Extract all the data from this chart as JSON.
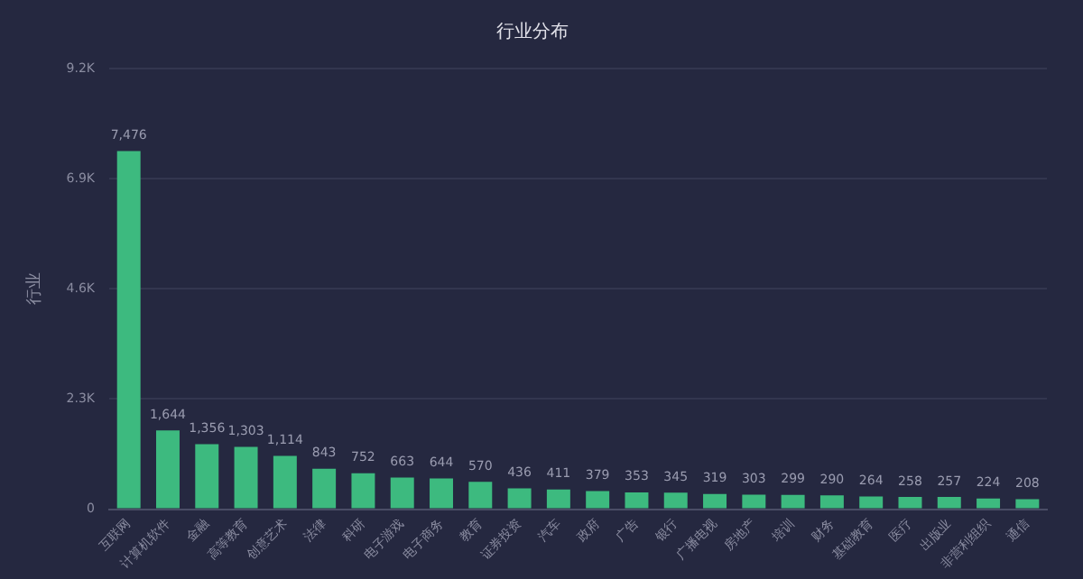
{
  "chart_data": {
    "type": "bar",
    "title": "行业分布",
    "ylabel": "行业",
    "categories": [
      "互联网",
      "计算机软件",
      "金融",
      "高等教育",
      "创意艺术",
      "法律",
      "科研",
      "电子游戏",
      "电子商务",
      "教育",
      "证券投资",
      "汽车",
      "政府",
      "广告",
      "银行",
      "广播电视",
      "房地产",
      "培训",
      "财务",
      "基础教育",
      "医疗",
      "出版业",
      "非营利组织",
      "通信"
    ],
    "values": [
      7476,
      1644,
      1356,
      1303,
      1114,
      843,
      752,
      663,
      644,
      570,
      436,
      411,
      379,
      353,
      345,
      319,
      303,
      299,
      290,
      264,
      258,
      257,
      224,
      208
    ],
    "value_labels": [
      "7,476",
      "1,644",
      "1,356",
      "1,303",
      "1,114",
      "843",
      "752",
      "663",
      "644",
      "570",
      "436",
      "411",
      "379",
      "353",
      "345",
      "319",
      "303",
      "299",
      "290",
      "264",
      "258",
      "257",
      "224",
      "208"
    ],
    "color": "#3dba7f",
    "ylim": [
      0,
      9200
    ],
    "yticks": [
      0,
      {
        "value": 2300,
        "label": "2.3K"
      },
      {
        "value": 4600,
        "label": "4.6K"
      },
      {
        "value": 6900,
        "label": "6.9K"
      },
      {
        "value": 9200,
        "label": "9.2K"
      }
    ],
    "grid": "y",
    "legend": false
  }
}
